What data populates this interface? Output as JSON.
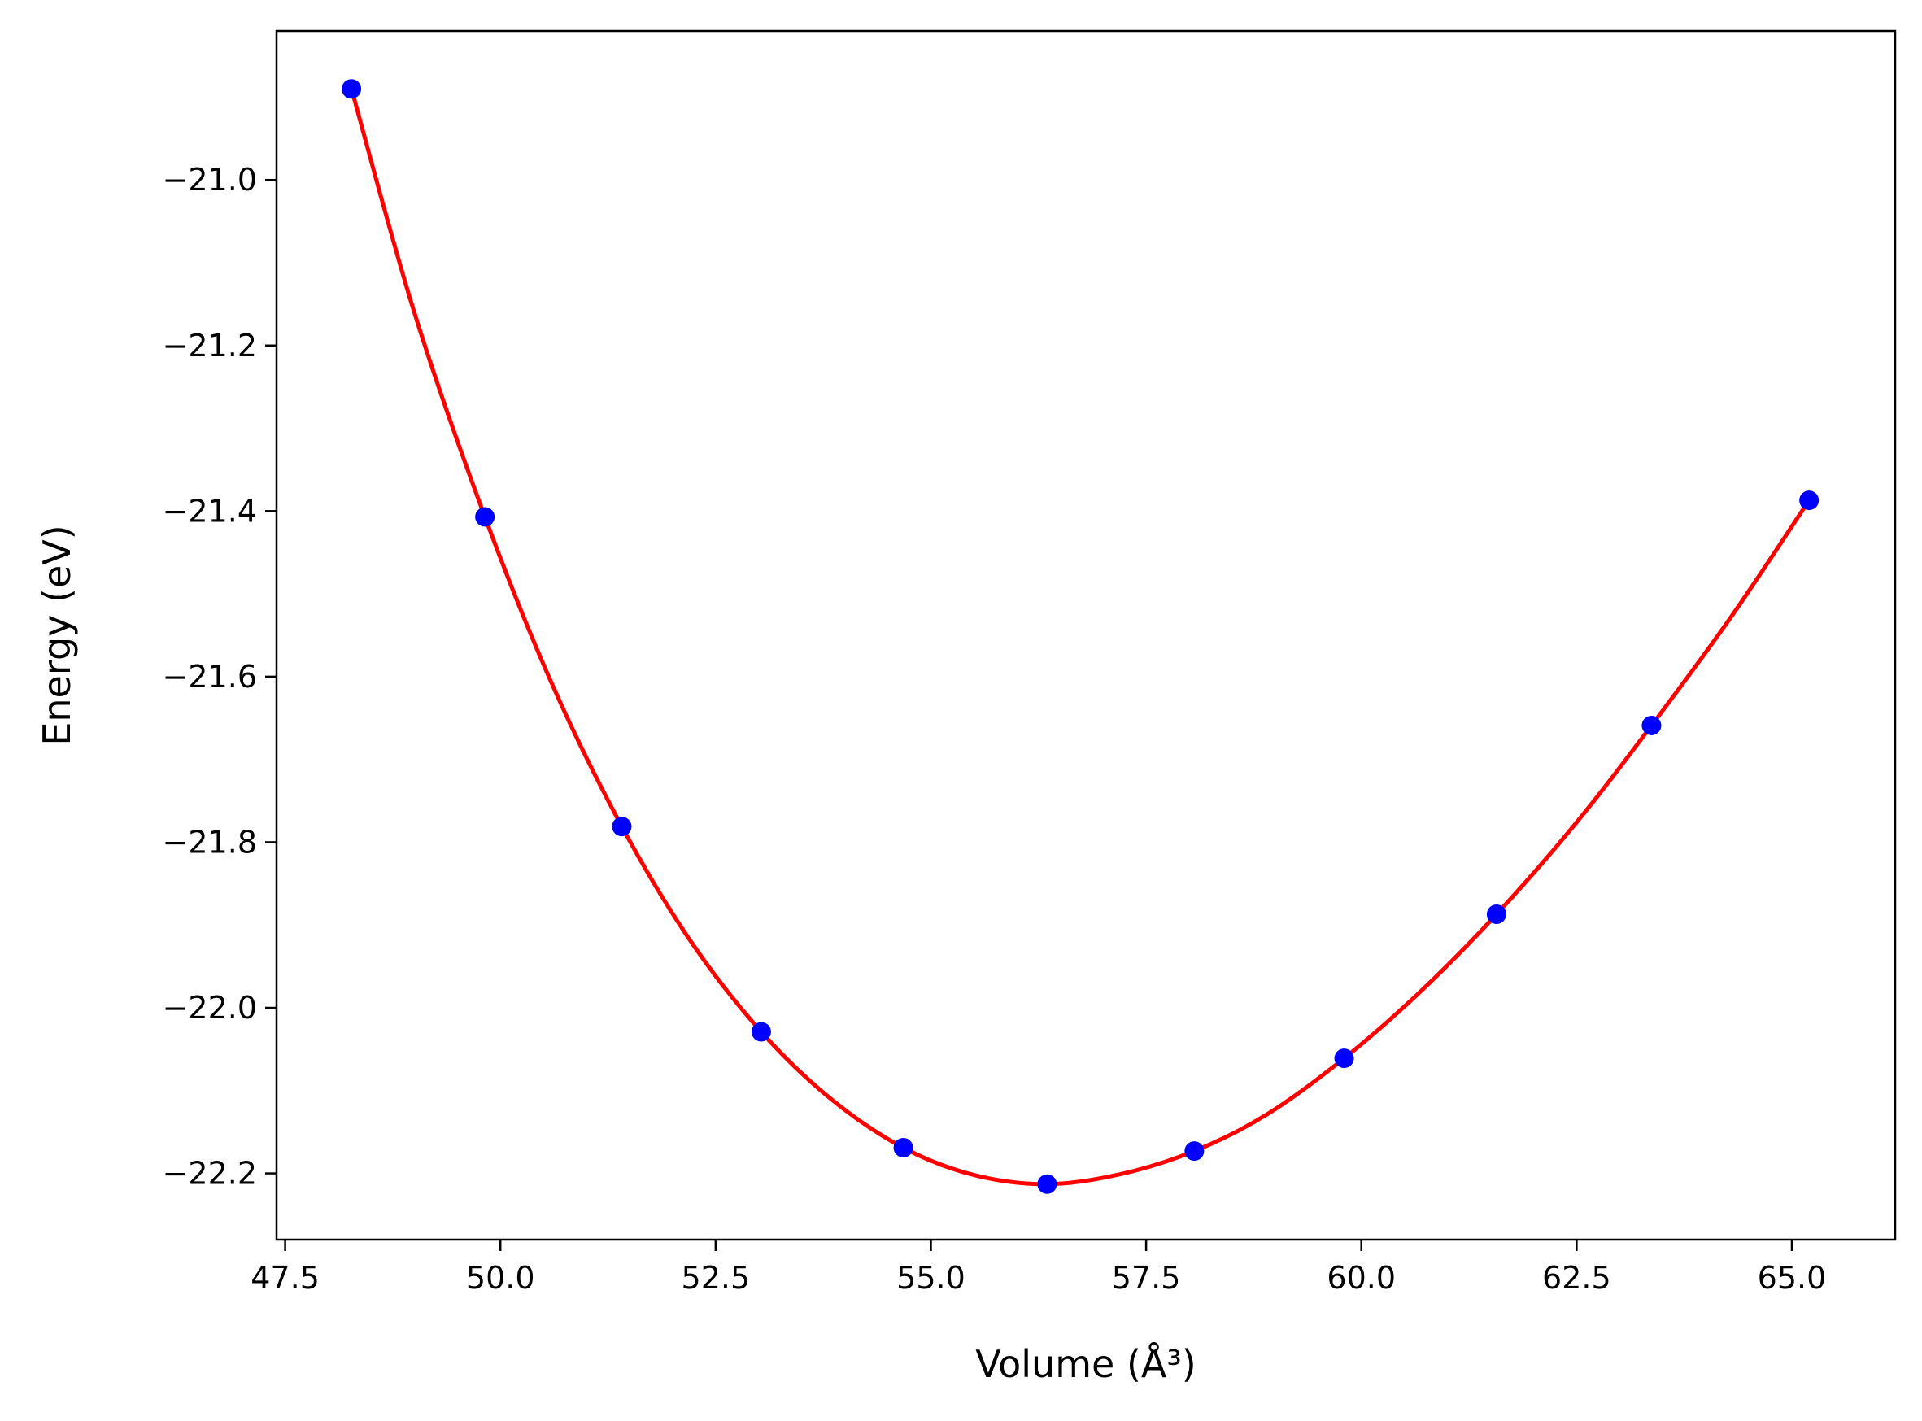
{
  "chart_data": {
    "type": "scatter",
    "title": "",
    "xlabel": "Volume (Å³)",
    "ylabel": "Energy (eV)",
    "xlim": [
      47.4,
      66.2
    ],
    "ylim": [
      -22.28,
      -20.82
    ],
    "xticks": [
      47.5,
      50.0,
      52.5,
      55.0,
      57.5,
      60.0,
      62.5,
      65.0
    ],
    "xtick_labels": [
      "47.5",
      "50.0",
      "52.5",
      "55.0",
      "57.5",
      "60.0",
      "62.5",
      "65.0"
    ],
    "yticks": [
      -21.0,
      -21.2,
      -21.4,
      -21.6,
      -21.8,
      -22.0,
      -22.2
    ],
    "ytick_labels": [
      "−21.0",
      "−21.2",
      "−21.4",
      "−21.6",
      "−21.8",
      "−22.0",
      "−22.2"
    ],
    "grid": false,
    "series": [
      {
        "kind": "points",
        "color": "#0000ff",
        "x": [
          48.27,
          49.82,
          51.41,
          53.03,
          54.68,
          56.35,
          58.06,
          59.8,
          61.57,
          63.37,
          65.2
        ],
        "y": [
          -20.89,
          -21.407,
          -21.781,
          -22.029,
          -22.169,
          -22.213,
          -22.173,
          -22.061,
          -21.887,
          -21.659,
          -21.387
        ]
      },
      {
        "kind": "fit-curve",
        "color": "#ff0000",
        "x": [
          48.27,
          49.0,
          49.82,
          50.6,
          51.41,
          52.2,
          53.03,
          53.85,
          54.68,
          55.5,
          56.35,
          57.2,
          58.06,
          58.9,
          59.8,
          60.7,
          61.57,
          62.5,
          63.37,
          64.3,
          65.2
        ],
        "y": [
          -20.89,
          -21.16,
          -21.407,
          -21.609,
          -21.781,
          -21.918,
          -22.029,
          -22.111,
          -22.169,
          -22.202,
          -22.213,
          -22.201,
          -22.173,
          -22.129,
          -22.061,
          -21.979,
          -21.887,
          -21.776,
          -21.659,
          -21.527,
          -21.387
        ]
      }
    ]
  }
}
